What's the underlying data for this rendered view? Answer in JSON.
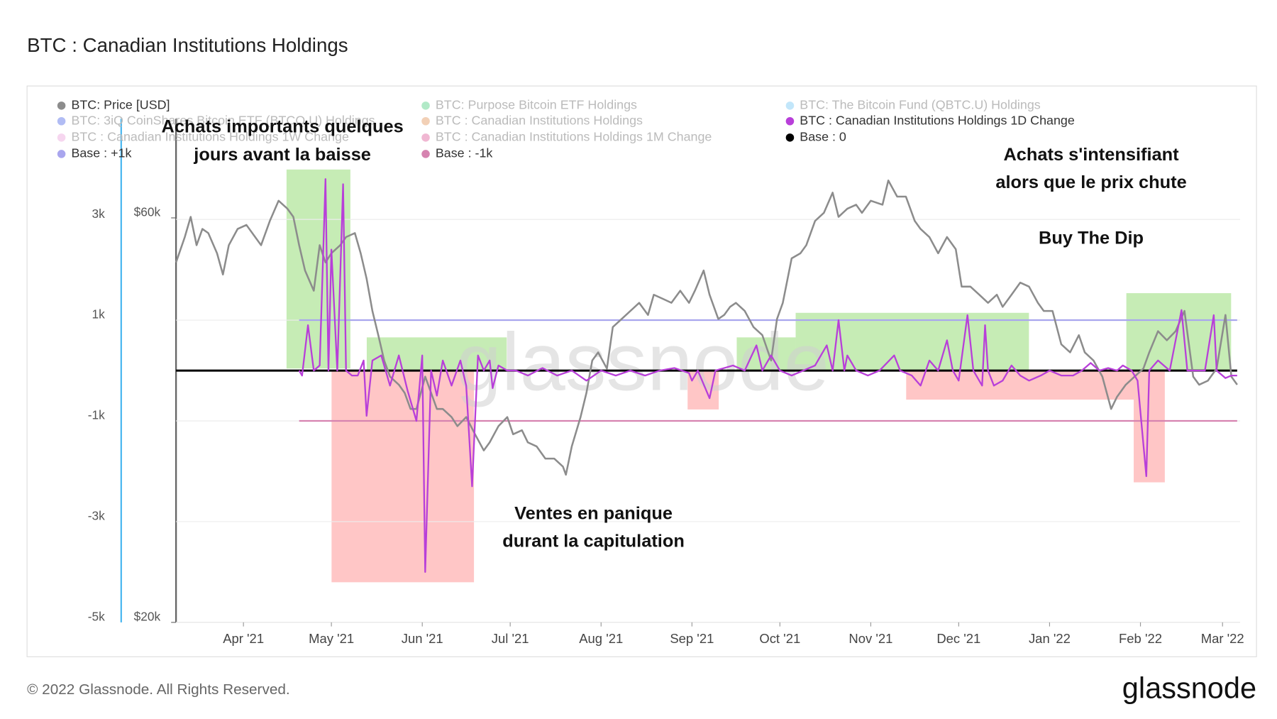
{
  "chart_data": {
    "type": "line",
    "title": "BTC : Canadian Institutions Holdings",
    "footer": "© 2022 Glassnode. All Rights Reserved.",
    "logo": "glassnode",
    "watermark": "glassnode",
    "xlim": [
      0,
      363
    ],
    "xticks": [
      {
        "value": 23,
        "label": "Apr '21"
      },
      {
        "value": 53,
        "label": "May '21"
      },
      {
        "value": 84,
        "label": "Jun '21"
      },
      {
        "value": 114,
        "label": "Jul '21"
      },
      {
        "value": 145,
        "label": "Aug '21"
      },
      {
        "value": 176,
        "label": "Sep '21"
      },
      {
        "value": 206,
        "label": "Oct '21"
      },
      {
        "value": 237,
        "label": "Nov '21"
      },
      {
        "value": 267,
        "label": "Dec '21"
      },
      {
        "value": 298,
        "label": "Jan '22"
      },
      {
        "value": 329,
        "label": "Feb '22"
      },
      {
        "value": 357,
        "label": "Mar '22"
      }
    ],
    "ylim": [
      -5000,
      5600
    ],
    "yticks": [
      {
        "value": 3000,
        "label": "3k"
      },
      {
        "value": 1000,
        "label": "1k"
      },
      {
        "value": -1000,
        "label": "-1k"
      },
      {
        "value": -3000,
        "label": "-3k"
      },
      {
        "value": -5000,
        "label": "-5k"
      }
    ],
    "y2lim": [
      20000,
      72800
    ],
    "y2ticks": [
      {
        "value": 60000,
        "label": "$60k"
      },
      {
        "value": 20000,
        "label": "$20k"
      }
    ],
    "grid": true,
    "series": [
      {
        "name": "BTC: Price [USD]",
        "color": "#8c8c8c",
        "axis": "y2",
        "visible": true,
        "x": [
          0,
          3,
          5,
          7,
          9,
          11,
          14,
          16,
          18,
          21,
          24,
          27,
          29,
          32,
          35,
          38,
          40,
          42,
          44,
          47,
          49,
          51,
          53,
          56,
          58,
          61,
          63,
          65,
          67,
          69,
          71,
          73,
          76,
          78,
          80,
          82,
          85,
          87,
          89,
          91,
          94,
          96,
          99,
          102,
          105,
          107,
          110,
          113,
          115,
          118,
          120,
          123,
          126,
          129,
          132,
          133,
          135,
          138,
          140,
          142,
          144,
          147,
          149,
          152,
          155,
          158,
          161,
          163,
          166,
          169,
          172,
          175,
          177,
          180,
          182,
          185,
          187,
          189,
          191,
          194,
          197,
          200,
          203,
          205,
          207,
          210,
          213,
          215,
          218,
          221,
          224,
          226,
          229,
          232,
          234,
          237,
          241,
          243,
          246,
          249,
          252,
          254,
          257,
          260,
          263,
          266,
          268,
          271,
          274,
          277,
          280,
          282,
          285,
          288,
          291,
          294,
          296,
          299,
          302,
          305,
          308,
          310,
          313,
          316,
          319,
          321,
          324,
          327,
          330,
          332,
          335,
          338,
          341,
          344,
          347,
          349,
          352,
          355,
          358,
          360,
          362
        ],
        "values": [
          55600,
          58100,
          60100,
          57300,
          58900,
          58500,
          56500,
          54400,
          57300,
          58900,
          59300,
          58100,
          57300,
          59700,
          61700,
          60900,
          60100,
          57300,
          54800,
          52800,
          57300,
          55600,
          56500,
          57300,
          58100,
          58500,
          56500,
          54000,
          50800,
          48400,
          45900,
          44300,
          43500,
          42700,
          41100,
          41100,
          44300,
          42700,
          41100,
          41100,
          40300,
          39400,
          40300,
          38600,
          37000,
          37800,
          39400,
          40300,
          38600,
          39000,
          37800,
          37400,
          36200,
          36200,
          35400,
          34600,
          37400,
          40300,
          42700,
          45900,
          46700,
          45100,
          49200,
          50000,
          50800,
          51600,
          50400,
          52400,
          52000,
          51600,
          52800,
          51600,
          52800,
          54800,
          52400,
          50000,
          50400,
          51200,
          51600,
          50800,
          49200,
          48400,
          45900,
          50000,
          51600,
          56000,
          56500,
          57300,
          59700,
          60500,
          62500,
          60100,
          60900,
          61300,
          60500,
          61700,
          61300,
          63700,
          62100,
          62100,
          59700,
          58900,
          58100,
          56500,
          58100,
          56900,
          53200,
          53200,
          52400,
          51600,
          52400,
          51200,
          52400,
          53600,
          53200,
          51600,
          50800,
          50800,
          47500,
          46700,
          48400,
          46700,
          45900,
          44300,
          41100,
          42300,
          43500,
          44300,
          45100,
          46700,
          48800,
          47900,
          48800,
          50800,
          44300,
          43500,
          43900,
          45100,
          50400,
          44300,
          43500
        ]
      },
      {
        "name": "BTC: Purpose Bitcoin ETF Holdings",
        "color": "#1fbf5f",
        "visible": false
      },
      {
        "name": "BTC: The Bitcoin Fund (QBTC.U) Holdings",
        "color": "#4fb8f0",
        "visible": false
      },
      {
        "name": "BTC: 3iQ CoinShares Bitcoin ETF (BTCQ.U) Holdings",
        "color": "#1f3fdf",
        "visible": false
      },
      {
        "name": "BTC : Canadian Institutions Holdings",
        "color": "#d9782d",
        "visible": false
      },
      {
        "name": "BTC : Canadian Institutions Holdings 1D Change",
        "color": "#b83fd9",
        "visible": true,
        "x": [
          42,
          43,
          45,
          47,
          49,
          51,
          52,
          53,
          55,
          57,
          58,
          60,
          62,
          64,
          65,
          67,
          70,
          73,
          76,
          79,
          82,
          84,
          85,
          87,
          89,
          91,
          94,
          97,
          99,
          101,
          103,
          105,
          107,
          108,
          110,
          113,
          116,
          120,
          125,
          130,
          135,
          140,
          145,
          150,
          155,
          160,
          165,
          170,
          175,
          176,
          178,
          182,
          184,
          190,
          194,
          198,
          200,
          203,
          206,
          210,
          214,
          218,
          222,
          224,
          226,
          228,
          229,
          232,
          236,
          240,
          245,
          247,
          251,
          254,
          257,
          260,
          263,
          265,
          267,
          270,
          272,
          275,
          276,
          277,
          279,
          282,
          285,
          288,
          291,
          295,
          298,
          302,
          306,
          309,
          312,
          315,
          318,
          321,
          323,
          326,
          328,
          331,
          332,
          335,
          339,
          343,
          345,
          347,
          351,
          354,
          355,
          358,
          360,
          362
        ],
        "values": [
          0,
          -100,
          900,
          0,
          100,
          3800,
          0,
          2400,
          0,
          3700,
          0,
          -100,
          -100,
          200,
          -900,
          200,
          300,
          -300,
          300,
          -400,
          -1000,
          300,
          -4000,
          0,
          -500,
          200,
          -300,
          200,
          -300,
          -2300,
          300,
          0,
          200,
          -350,
          100,
          0,
          0,
          -100,
          50,
          -100,
          0,
          -200,
          0,
          -100,
          0,
          -100,
          0,
          50,
          -50,
          -200,
          0,
          -550,
          0,
          100,
          0,
          500,
          0,
          300,
          0,
          -100,
          0,
          100,
          500,
          0,
          1000,
          0,
          300,
          0,
          -100,
          0,
          300,
          0,
          -100,
          -300,
          200,
          0,
          600,
          0,
          -200,
          1100,
          0,
          -300,
          900,
          0,
          -300,
          -200,
          100,
          -100,
          -200,
          -100,
          0,
          -100,
          -100,
          0,
          150,
          0,
          50,
          0,
          100,
          0,
          -200,
          -2100,
          0,
          200,
          0,
          1200,
          0,
          0,
          0,
          1100,
          0,
          -150,
          -100,
          -100
        ]
      },
      {
        "name": "BTC : Canadian Institutions Holdings 1W Change",
        "color": "#e68ad0",
        "visible": false
      },
      {
        "name": "BTC : Canadian Institutions Holdings 1M Change",
        "color": "#d4307f",
        "visible": false
      },
      {
        "name": "Base : 0",
        "color": "#000000",
        "visible": true,
        "x": [
          0,
          362
        ],
        "values": [
          0,
          0
        ]
      },
      {
        "name": "Base : +1k",
        "color": "#a9a6ee",
        "visible": true,
        "x": [
          42,
          362
        ],
        "values": [
          1000,
          1000
        ]
      },
      {
        "name": "Base : -1k",
        "color": "#d683b0",
        "visible": true,
        "x": [
          42,
          362
        ],
        "values": [
          -1000,
          -1000
        ]
      }
    ],
    "annotations": [
      {
        "lines": [
          "Achats importants quelques",
          "jours avant la baisse"
        ]
      },
      {
        "lines": [
          "Ventes en panique",
          "durant la capitulation"
        ]
      },
      {
        "lines": [
          "Achats s'intensifiant",
          "alors que le prix chute"
        ]
      },
      {
        "lines": [
          "Buy The Dip"
        ]
      }
    ]
  }
}
